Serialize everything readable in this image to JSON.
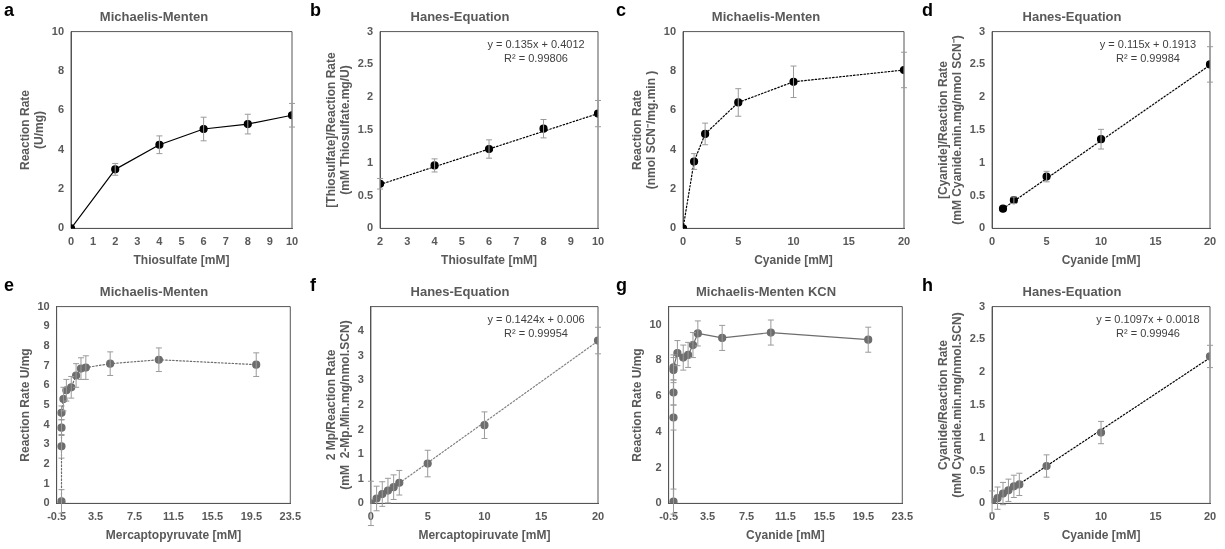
{
  "chart_data": [
    {
      "type": "scatter",
      "title": "Michaelis-Menten",
      "xlabel": "Thiosulfate [mM]",
      "ylabel": "Reaction Rate\n(U/mg)",
      "annotations": [
        "a"
      ],
      "xlim": [
        0,
        10
      ],
      "xticks": [
        0,
        1,
        2,
        3,
        4,
        5,
        6,
        7,
        8,
        9,
        10
      ],
      "ylim": [
        0,
        10
      ],
      "yticks": [
        0,
        2,
        4,
        6,
        8,
        10
      ],
      "series": [
        {
          "type": "line",
          "color": "#000000",
          "marker": "circle",
          "line_style": "solid",
          "x": [
            0,
            2,
            4,
            6,
            8,
            10
          ],
          "values": [
            0,
            3.0,
            4.25,
            5.05,
            5.3,
            5.75
          ],
          "errors": [
            null,
            0.3,
            0.45,
            0.6,
            0.5,
            0.6
          ]
        }
      ]
    },
    {
      "type": "scatter",
      "title": "Hanes-Equation",
      "xlabel": "Thiosulfate [mM]",
      "ylabel": "[Thiosulfate]/Reaction Rate\n(mM Thiosulfate.mg/U)",
      "annotations": [
        "b",
        "y = 0.135x + 0.4012",
        "R² = 0.99806"
      ],
      "xlim": [
        2,
        10
      ],
      "xticks": [
        2,
        3,
        4,
        5,
        6,
        7,
        8,
        9,
        10
      ],
      "ylim": [
        0,
        3
      ],
      "yticks": [
        0,
        0.5,
        1,
        1.5,
        2,
        2.5,
        3
      ],
      "series": [
        {
          "type": "scatter",
          "color": "#000000",
          "marker": "circle",
          "x": [
            2,
            4,
            6,
            8,
            10
          ],
          "values": [
            0.68,
            0.96,
            1.21,
            1.52,
            1.75
          ],
          "errors": [
            0.08,
            0.1,
            0.14,
            0.14,
            0.2
          ]
        },
        {
          "type": "line",
          "color": "#000000",
          "marker": "none",
          "line_style": "dotted",
          "x": [
            2,
            10
          ],
          "values": [
            0.67,
            1.75
          ]
        }
      ]
    },
    {
      "type": "scatter",
      "title": "Michaelis-Menten",
      "xlabel": "Cyanide [mM]",
      "ylabel": "Reaction Rate\n(nmol SCN⁻/mg.min )",
      "annotations": [
        "c"
      ],
      "xlim": [
        0,
        20
      ],
      "xticks": [
        0,
        5,
        10,
        15,
        20
      ],
      "ylim": [
        0,
        10
      ],
      "yticks": [
        0,
        2,
        4,
        6,
        8,
        10
      ],
      "series": [
        {
          "type": "line",
          "color": "#000000",
          "marker": "circle",
          "line_style": "dotted",
          "x": [
            0,
            1,
            2,
            5,
            10,
            20
          ],
          "values": [
            0,
            3.4,
            4.8,
            6.4,
            7.45,
            8.05
          ],
          "errors": [
            null,
            0.4,
            0.55,
            0.7,
            0.8,
            0.9
          ]
        }
      ]
    },
    {
      "type": "scatter",
      "title": "Hanes-Equation",
      "xlabel": "Cyanide [mM]",
      "ylabel": "[Cyanide]/Reaction Rate\n(mM Cyanide.min.mg/nmol SCN⁻)",
      "annotations": [
        "d",
        "y = 0.115x + 0.1913",
        "R² = 0.99984"
      ],
      "xlim": [
        0,
        20
      ],
      "xticks": [
        0,
        5,
        10,
        15,
        20
      ],
      "ylim": [
        0,
        3
      ],
      "yticks": [
        0,
        0.5,
        1,
        1.5,
        2,
        2.5,
        3
      ],
      "series": [
        {
          "type": "scatter",
          "color": "#000000",
          "marker": "circle",
          "x": [
            1,
            2,
            5,
            10,
            20
          ],
          "values": [
            0.3,
            0.43,
            0.79,
            1.36,
            2.5
          ],
          "errors": [
            null,
            0.05,
            0.08,
            0.15,
            0.27
          ]
        },
        {
          "type": "line",
          "color": "#000000",
          "marker": "none",
          "line_style": "dotted",
          "x": [
            1,
            20
          ],
          "values": [
            0.3,
            2.49
          ]
        }
      ]
    },
    {
      "type": "scatter",
      "title": "Michaelis-Menten",
      "xlabel": "Mercaptopyruvate [mM]",
      "ylabel": "Reaction Rate U/mg",
      "annotations": [
        "e"
      ],
      "xlim": [
        -0.5,
        23.5
      ],
      "xticks": [
        -0.5,
        3.5,
        7.5,
        11.5,
        15.5,
        19.5,
        23.5
      ],
      "ylim": [
        0,
        10
      ],
      "yticks": [
        0,
        1,
        2,
        3,
        4,
        5,
        6,
        7,
        8,
        9,
        10
      ],
      "series": [
        {
          "type": "line",
          "color": "#6d6d6d",
          "marker": "circle",
          "line_style": "dotted",
          "x": [
            0,
            0,
            0,
            0,
            0.2,
            0.5,
            1,
            1.5,
            2,
            2.5,
            5,
            10,
            20
          ],
          "values": [
            0.1,
            2.9,
            3.85,
            4.6,
            5.3,
            5.75,
            5.9,
            6.5,
            6.85,
            6.9,
            7.1,
            7.3,
            7.05
          ],
          "errors": [
            0.6,
            0.6,
            0.4,
            0.35,
            0.6,
            0.55,
            0.55,
            0.6,
            0.55,
            0.6,
            0.6,
            0.6,
            0.6
          ]
        }
      ]
    },
    {
      "type": "scatter",
      "title": "Hanes-Equation",
      "xlabel": "Mercaptopiruvate [mM]",
      "ylabel": "2 Mp/Reaction Rate\n(mM  2-Mp.Min.mg/nmol.SCN)",
      "annotations": [
        "f",
        "y = 0.1424x + 0.006",
        "R² = 0.99954"
      ],
      "xlim": [
        0,
        20
      ],
      "xticks": [
        0,
        5,
        10,
        15,
        20
      ],
      "ylim": [
        0,
        4
      ],
      "yticks": [
        0,
        {
          "value": 0.5,
          "label": "1"
        },
        1,
        {
          "value": 1.5,
          "label": "2"
        },
        2,
        {
          "value": 2.5,
          "label": "3"
        },
        3,
        {
          "value": 3.5,
          "label": "4"
        }
      ],
      "series": [
        {
          "type": "scatter",
          "color": "#6d6d6d",
          "marker": "circle",
          "x": [
            0,
            0.5,
            1,
            1.5,
            2,
            2.5,
            5,
            10,
            20
          ],
          "values": [
            0,
            0.1,
            0.19,
            0.26,
            0.33,
            0.42,
            0.81,
            1.59,
            3.31
          ],
          "errors": [
            0.45,
            0.25,
            0.25,
            0.25,
            0.25,
            0.25,
            0.27,
            0.27,
            0.27
          ]
        },
        {
          "type": "line",
          "color": "#808080",
          "marker": "none",
          "line_style": "dotted",
          "x": [
            0,
            20
          ],
          "values": [
            0,
            3.3
          ]
        }
      ]
    },
    {
      "type": "scatter",
      "title": "Michaelis-Menten KCN",
      "xlabel": "Cyanide [mM]",
      "ylabel": "Reaction Rate U/mg",
      "annotations": [
        "g"
      ],
      "xlim": [
        -0.5,
        23.5
      ],
      "xticks": [
        -0.5,
        3.5,
        7.5,
        11.5,
        15.5,
        19.5,
        23.5
      ],
      "ylim": [
        0,
        11
      ],
      "yticks": [
        0,
        2,
        4,
        6,
        8,
        10
      ],
      "series": [
        {
          "type": "line",
          "color": "#6d6d6d",
          "marker": "circle",
          "line_style": "solid",
          "x": [
            0,
            0,
            0,
            0,
            0,
            0.4,
            1,
            1.5,
            2,
            2.5,
            5,
            10,
            20
          ],
          "values": [
            0.1,
            4.8,
            6.2,
            7.45,
            7.6,
            8.4,
            8.15,
            8.3,
            8.85,
            9.5,
            9.25,
            9.55,
            9.15
          ],
          "errors": [
            0.7,
            0.7,
            0.7,
            0.7,
            0.7,
            0.7,
            0.7,
            0.7,
            0.7,
            0.7,
            0.7,
            0.7,
            0.7
          ]
        }
      ]
    },
    {
      "type": "scatter",
      "title": "Hanes-Equation",
      "xlabel": "Cyanide [mM]",
      "ylabel": "Cyanide/Reaction Rate\n(mM Cyanide.min.mg/nmol.SCN)",
      "annotations": [
        "h",
        "y = 0.1097x + 0.0018",
        "R² = 0.99946"
      ],
      "xlim": [
        0,
        20
      ],
      "xticks": [
        0,
        5,
        10,
        15,
        20
      ],
      "ylim": [
        0,
        3
      ],
      "yticks": [
        0,
        0.5,
        1,
        1.5,
        2,
        2.5,
        3
      ],
      "series": [
        {
          "type": "scatter",
          "color": "#6d6d6d",
          "marker": "circle",
          "x": [
            0,
            0.5,
            1,
            1.5,
            2,
            2.5,
            5,
            10,
            20
          ],
          "values": [
            0.02,
            0.08,
            0.15,
            0.2,
            0.26,
            0.29,
            0.57,
            1.08,
            2.24
          ],
          "errors": [
            0.17,
            0.17,
            0.17,
            0.17,
            0.17,
            0.17,
            0.17,
            0.17,
            0.17
          ]
        },
        {
          "type": "line",
          "color": "#000000",
          "marker": "none",
          "line_style": "dotted",
          "x": [
            0,
            20
          ],
          "values": [
            0.02,
            2.22
          ]
        }
      ]
    }
  ]
}
